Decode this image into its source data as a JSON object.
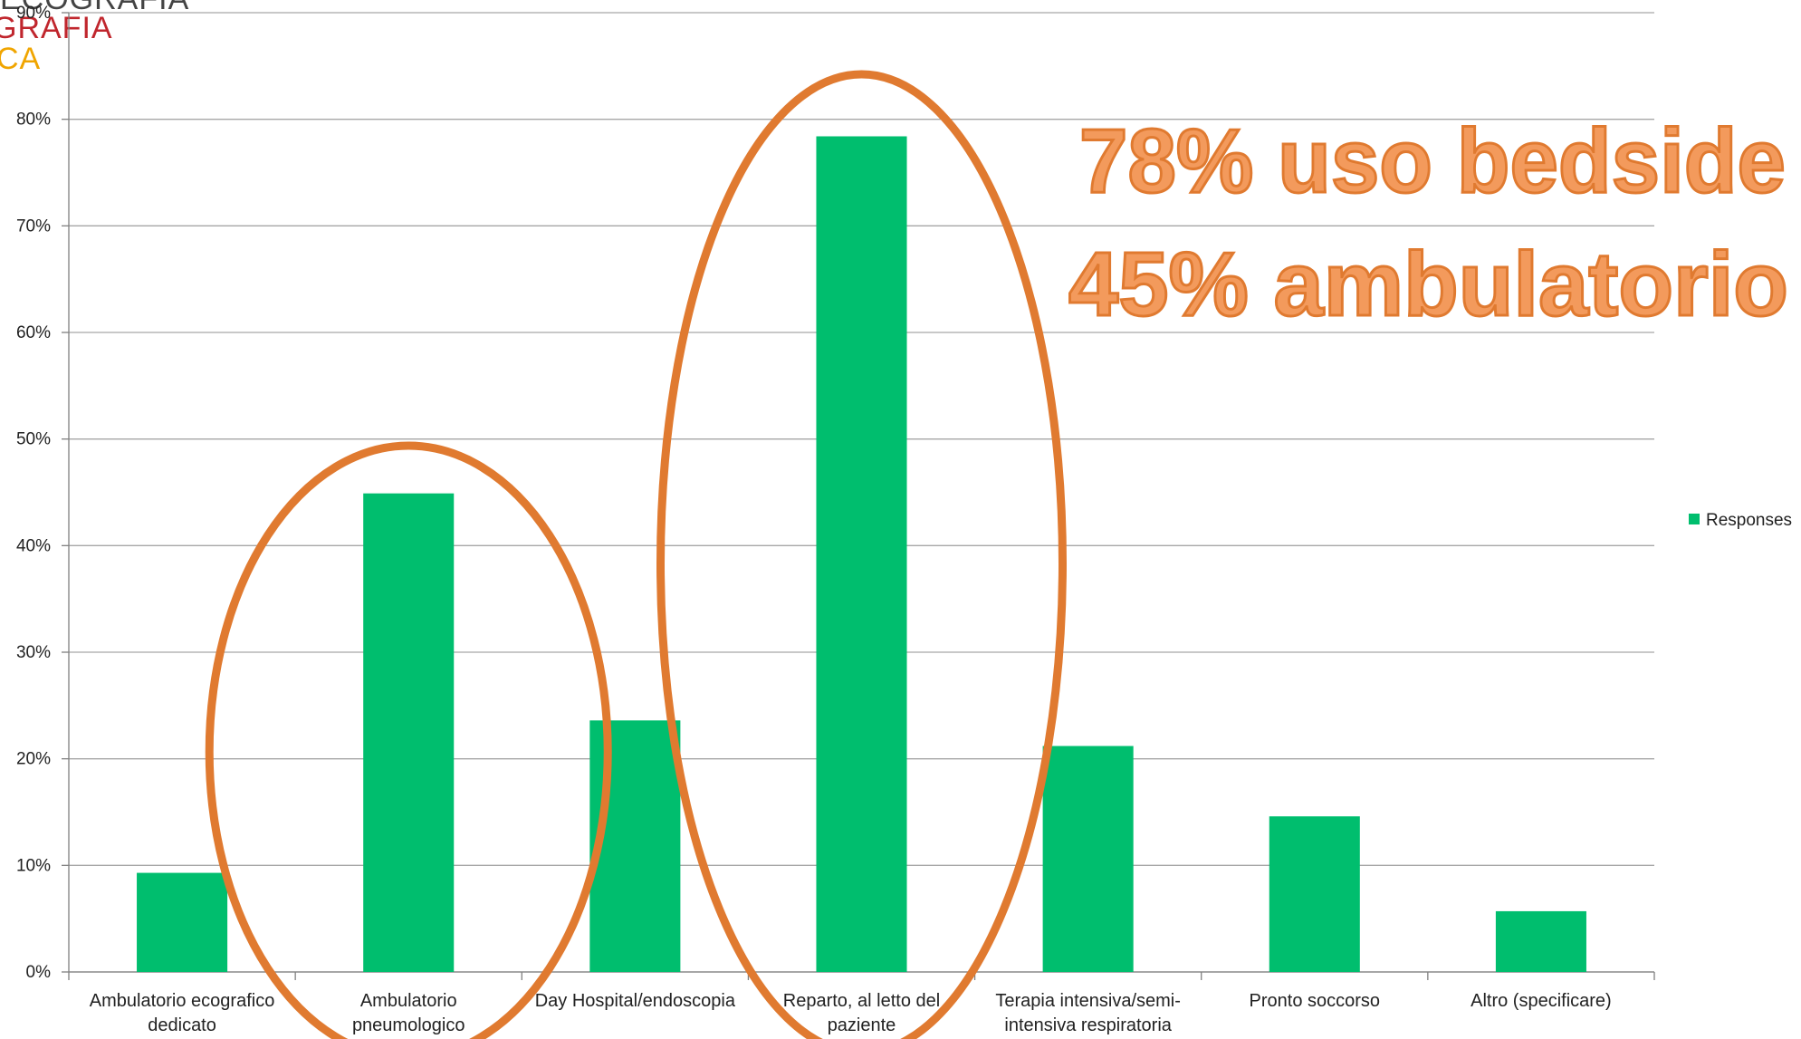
{
  "logo": {
    "lines": [
      "ECOGRAFIA",
      "GRAFIA",
      "CA"
    ],
    "colors": [
      "#444444",
      "#c0262d",
      "#f0a500"
    ]
  },
  "chart_data": {
    "type": "bar",
    "categories": [
      [
        "Ambulatorio ecografico",
        "dedicato"
      ],
      [
        "Ambulatorio",
        "pneumologico"
      ],
      [
        "Day Hospital/endoscopia"
      ],
      [
        "Reparto, al letto del",
        "paziente"
      ],
      [
        "Terapia intensiva/semi-",
        "intensiva respiratoria"
      ],
      [
        "Pronto soccorso"
      ],
      [
        "Altro (specificare)"
      ]
    ],
    "series": [
      {
        "name": "Responses",
        "values": [
          9.3,
          44.9,
          23.6,
          78.4,
          21.2,
          14.6,
          5.7
        ],
        "color": "#00be6e"
      }
    ],
    "ylim": [
      0,
      90
    ],
    "yticks": [
      "0%",
      "10%",
      "20%",
      "30%",
      "40%",
      "50%",
      "60%",
      "70%",
      "80%",
      "90%"
    ],
    "grid": true,
    "legend_position": "right",
    "annotations": {
      "text_lines": [
        "78% uso bedside",
        "45% ambulatorio"
      ],
      "color": "#f39a5c",
      "stroke": "#e07a30",
      "ellipse_categories": [
        1,
        3
      ]
    }
  }
}
